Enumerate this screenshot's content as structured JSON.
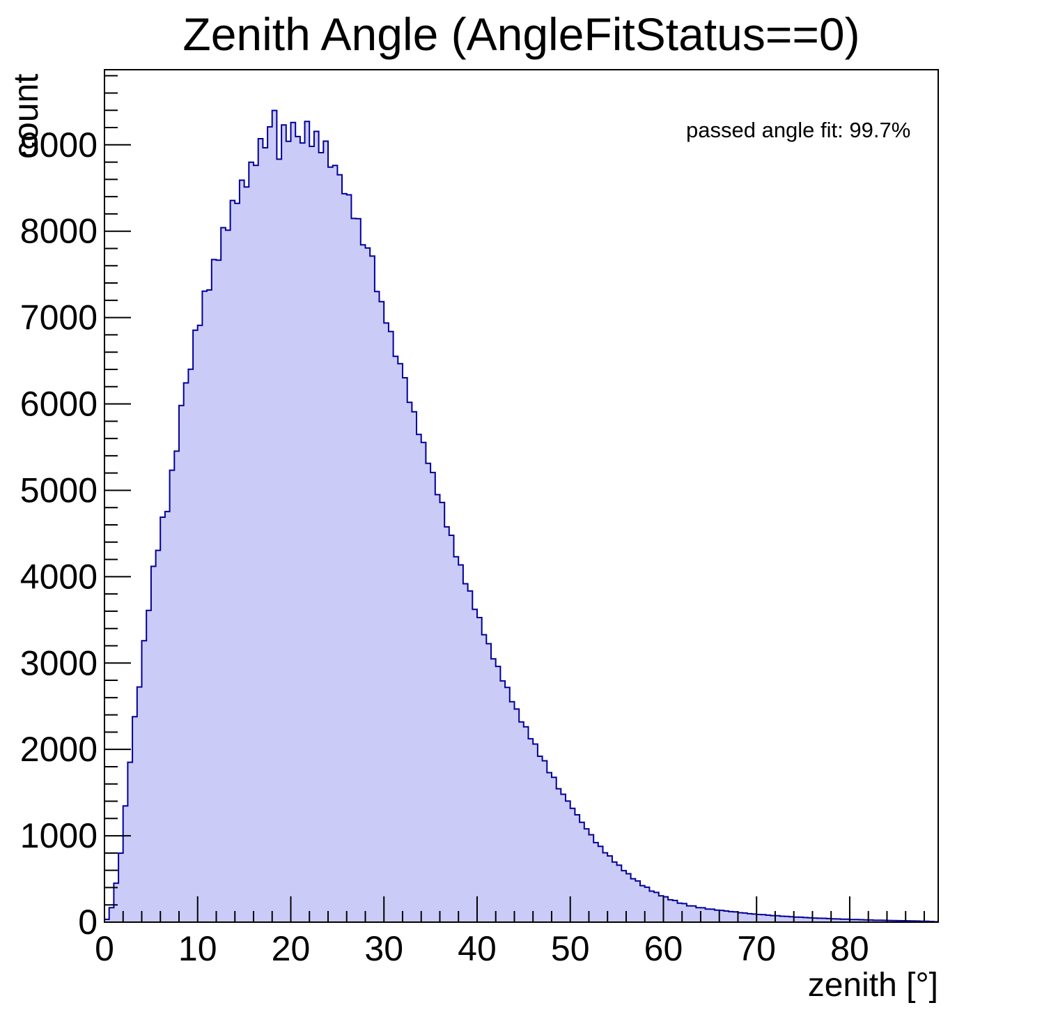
{
  "page": {
    "background": "#ffffff"
  },
  "chart_data": {
    "type": "bar",
    "subtype": "histogram-step-filled",
    "title": "Zenith Angle (AngleFitStatus==0)",
    "xlabel": "zenith [°]",
    "ylabel": "count",
    "annotation": "passed angle fit: 99.7%",
    "x_range": [
      0,
      89.5
    ],
    "y_range": [
      0,
      9870
    ],
    "x_major_ticks": [
      0,
      10,
      20,
      30,
      40,
      50,
      60,
      70,
      80
    ],
    "x_minor_tick_step": 2,
    "y_major_ticks": [
      0,
      1000,
      2000,
      3000,
      4000,
      5000,
      6000,
      7000,
      8000,
      9000
    ],
    "y_minor_tick_step": 200,
    "grid": false,
    "legend": null,
    "tick_direction": "in",
    "bin_start": 0,
    "bin_width": 0.5,
    "counts": [
      32,
      168,
      451,
      799,
      1346,
      1851,
      2379,
      2723,
      3258,
      3609,
      4120,
      4305,
      4689,
      4754,
      5233,
      5454,
      5982,
      6243,
      6401,
      6854,
      6910,
      7306,
      7320,
      7672,
      7665,
      8041,
      8012,
      8356,
      8322,
      8591,
      8512,
      8799,
      8762,
      9071,
      8966,
      9208,
      9398,
      8834,
      9231,
      9041,
      9258,
      9096,
      9022,
      9270,
      8982,
      9156,
      8910,
      9043,
      8742,
      8761,
      8653,
      8434,
      8421,
      8148,
      8145,
      7843,
      7806,
      7712,
      7301,
      7184,
      6937,
      6839,
      6551,
      6466,
      6303,
      6019,
      5909,
      5648,
      5555,
      5313,
      5206,
      4950,
      4859,
      4577,
      4479,
      4231,
      4136,
      3918,
      3834,
      3621,
      3527,
      3328,
      3224,
      3048,
      2961,
      2793,
      2717,
      2552,
      2468,
      2318,
      2261,
      2123,
      2062,
      1921,
      1868,
      1731,
      1676,
      1545,
      1481,
      1402,
      1318,
      1243,
      1156,
      1081,
      1012,
      921,
      878,
      803,
      767,
      696,
      659,
      596,
      561,
      502,
      477,
      423,
      404,
      359,
      344,
      305,
      294,
      259,
      251,
      220,
      215,
      189,
      187,
      168,
      166,
      152,
      150,
      140,
      136,
      129,
      122,
      119,
      109,
      106,
      98,
      94,
      89,
      86,
      81,
      76,
      74,
      69,
      66,
      63,
      59,
      57,
      53,
      51,
      48,
      45,
      44,
      41,
      39,
      37,
      35,
      34,
      31,
      30,
      28,
      26,
      25,
      23,
      22,
      21,
      19,
      18,
      17,
      16,
      15,
      14,
      13,
      11,
      10,
      8,
      5
    ],
    "colors": {
      "fill": "#cbcbf8",
      "line": "#000099",
      "axis": "#000000",
      "text": "#000000"
    }
  }
}
